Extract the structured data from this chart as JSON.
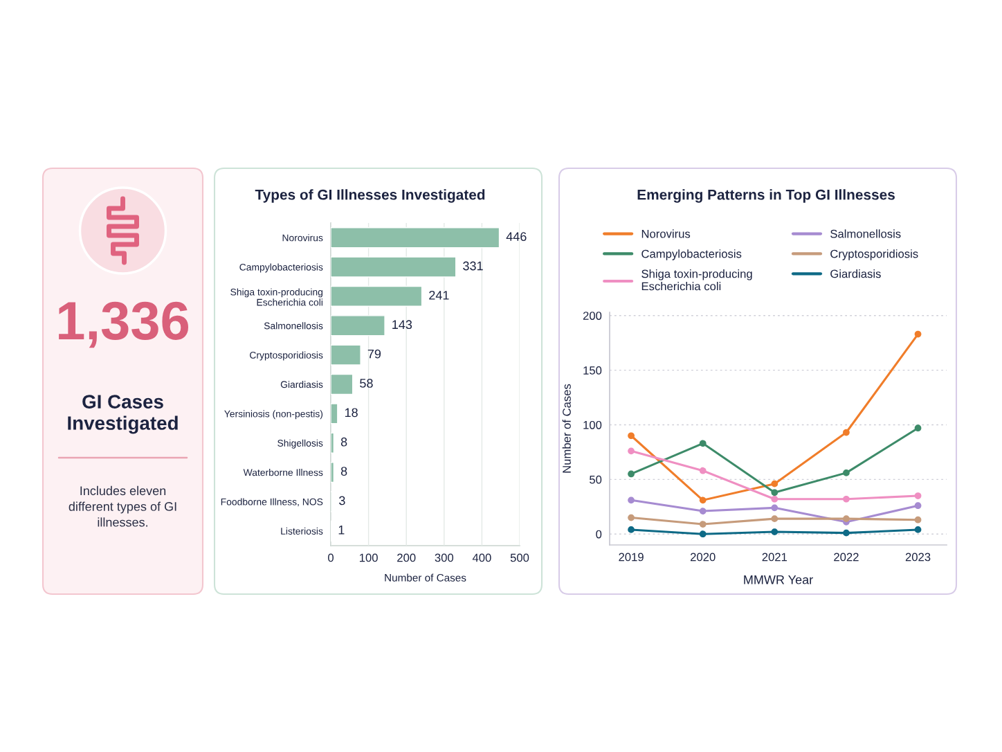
{
  "chart_data": [
    {
      "type": "other",
      "annotations": [
        "1,336",
        "GI Cases Investigated",
        "Includes eleven different types of GI illnesses."
      ]
    },
    {
      "type": "bar",
      "orientation": "horizontal",
      "title": "Types of GI Illnesses Investigated",
      "categories": [
        "Norovirus",
        "Campylobacteriosis",
        "Shiga toxin-producing Escherichia coli",
        "Salmonellosis",
        "Cryptosporidiosis",
        "Giardiasis",
        "Yersiniosis (non-pestis)",
        "Shigellosis",
        "Waterborne Illness",
        "Foodborne Illness, NOS",
        "Listeriosis"
      ],
      "values": [
        446,
        331,
        241,
        143,
        79,
        58,
        18,
        8,
        8,
        3,
        1
      ],
      "color": "#8dbfa9",
      "xlabel": "Number of Cases",
      "xlim": [
        0,
        500
      ],
      "xticks": [
        0,
        100,
        200,
        300,
        400,
        500
      ],
      "grid": "x",
      "data_labels": true
    },
    {
      "type": "line",
      "title": "Emerging Patterns in Top GI Illnesses",
      "x": [
        2019,
        2020,
        2021,
        2022,
        2023
      ],
      "series": [
        {
          "name": "Norovirus",
          "color": "#f07d2a",
          "values": [
            90,
            31,
            46,
            93,
            183
          ]
        },
        {
          "name": "Campylobacteriosis",
          "color": "#3d8b69",
          "values": [
            55,
            83,
            38,
            56,
            97
          ]
        },
        {
          "name": "Shiga toxin-producing Escherichia coli",
          "color": "#ef8fc2",
          "values": [
            76,
            58,
            32,
            32,
            35
          ]
        },
        {
          "name": "Salmonellosis",
          "color": "#a68bd1",
          "values": [
            31,
            21,
            24,
            11,
            26
          ]
        },
        {
          "name": "Cryptosporidiosis",
          "color": "#c69b7b",
          "values": [
            15,
            9,
            14,
            14,
            13
          ]
        },
        {
          "name": "Giardiasis",
          "color": "#0e6a86",
          "values": [
            4,
            0,
            2,
            1,
            4
          ]
        }
      ],
      "xlabel": "MMWR Year",
      "ylabel": "Number of Cases",
      "xlim": [
        2018.7,
        2023.4
      ],
      "xticks": [
        2019,
        2020,
        2021,
        2022,
        2023
      ],
      "ylim": [
        -10,
        203
      ],
      "yticks": [
        0,
        50,
        100,
        150,
        200
      ],
      "grid": "y",
      "legend": "top",
      "marker": "circle",
      "line_style": "solid"
    }
  ]
}
